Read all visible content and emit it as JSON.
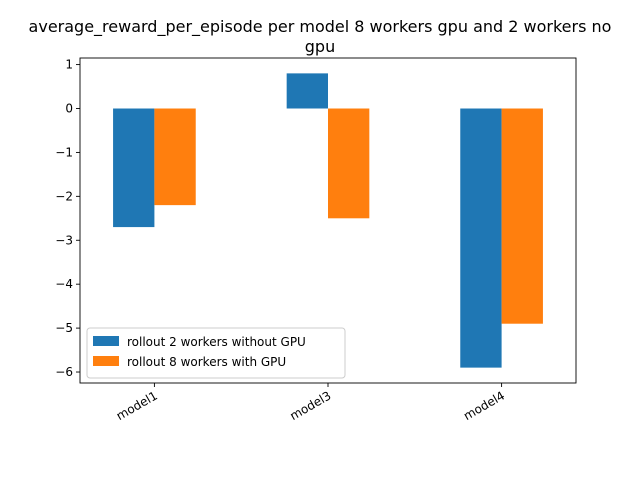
{
  "chart_data": {
    "type": "bar",
    "title": "average_reward_per_episode per model 8 workers gpu and 2 workers no gpu",
    "title_lines": [
      "average_reward_per_episode per model 8 workers gpu and 2 workers no",
      "gpu"
    ],
    "xlabel": "",
    "ylabel": "",
    "categories": [
      "model1",
      "model3",
      "model4"
    ],
    "series": [
      {
        "name": "rollout 2 workers without GPU",
        "color": "#1f77b4",
        "values": [
          -2.7,
          0.8,
          -5.9
        ]
      },
      {
        "name": "rollout 8 workers with GPU",
        "color": "#ff7f0e",
        "values": [
          -2.2,
          -2.5,
          -4.9
        ]
      }
    ],
    "ylim": [
      -6.25,
      1.15
    ],
    "yticks": [
      1,
      0,
      -1,
      -2,
      -3,
      -4,
      -5,
      -6
    ],
    "ytick_labels": [
      "1",
      "0",
      "−1",
      "−2",
      "−3",
      "−4",
      "−5",
      "−6"
    ],
    "grid": false,
    "legend_position": "lower-left",
    "xtick_rotation": "30deg"
  }
}
